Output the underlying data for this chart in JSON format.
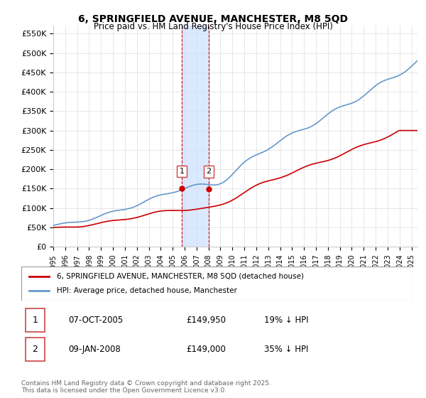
{
  "title": "6, SPRINGFIELD AVENUE, MANCHESTER, M8 5QD",
  "subtitle": "Price paid vs. HM Land Registry's House Price Index (HPI)",
  "ylabel_ticks": [
    "£0",
    "£50K",
    "£100K",
    "£150K",
    "£200K",
    "£250K",
    "£300K",
    "£350K",
    "£400K",
    "£450K",
    "£500K",
    "£550K"
  ],
  "ytick_values": [
    0,
    50000,
    100000,
    150000,
    200000,
    250000,
    300000,
    350000,
    400000,
    450000,
    500000,
    550000
  ],
  "ylim": [
    0,
    570000
  ],
  "xlim_start": 1995.0,
  "xlim_end": 2025.5,
  "transaction1_x": 2005.77,
  "transaction1_y": 149950,
  "transaction2_x": 2008.03,
  "transaction2_y": 149000,
  "shade_x1": 2005.77,
  "shade_x2": 2008.03,
  "red_line_color": "#cc0000",
  "blue_line_color": "#6699cc",
  "shade_color": "#cce0ff",
  "dashed_line_color": "#cc0000",
  "grid_color": "#dddddd",
  "background_color": "#ffffff",
  "legend_red_label": "6, SPRINGFIELD AVENUE, MANCHESTER, M8 5QD (detached house)",
  "legend_blue_label": "HPI: Average price, detached house, Manchester",
  "table_row1": [
    "1",
    "07-OCT-2005",
    "£149,950",
    "19% ↓ HPI"
  ],
  "table_row2": [
    "2",
    "09-JAN-2008",
    "£149,000",
    "35% ↓ HPI"
  ],
  "footer_text": "Contains HM Land Registry data © Crown copyright and database right 2025.\nThis data is licensed under the Open Government Licence v3.0.",
  "xlabel_years": [
    "1995",
    "1996",
    "1997",
    "1998",
    "1999",
    "2000",
    "2001",
    "2002",
    "2003",
    "2004",
    "2005",
    "2006",
    "2007",
    "2008",
    "2009",
    "2010",
    "2011",
    "2012",
    "2013",
    "2014",
    "2015",
    "2016",
    "2017",
    "2018",
    "2019",
    "2020",
    "2021",
    "2022",
    "2023",
    "2024",
    "2025"
  ]
}
